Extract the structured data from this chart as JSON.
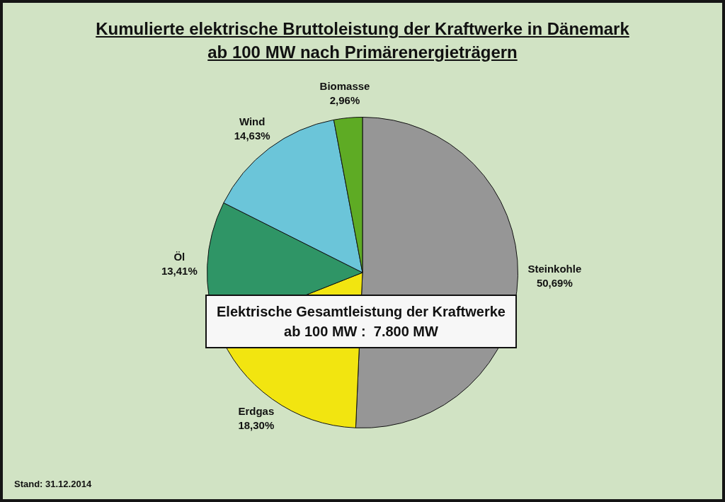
{
  "chart_data": {
    "type": "pie",
    "title": "Kumulierte elektrische Bruttoleistung der Kraftwerke in Dänemark ab 100 MW nach Primärenergieträgern",
    "categories": [
      "Steinkohle",
      "Erdgas",
      "Öl",
      "Wind",
      "Biomasse"
    ],
    "values": [
      50.69,
      18.3,
      13.41,
      14.63,
      2.96
    ],
    "colors": [
      "#969696",
      "#f2e510",
      "#2f9566",
      "#6bc5d9",
      "#5eab24"
    ],
    "value_labels": [
      "50,69%",
      "18,30%",
      "13,41%",
      "14,63%",
      "2,96%"
    ],
    "annotations": [
      "Elektrische Gesamtleistung der Kraftwerke ab 100 MW :  7.800 MW",
      "Stand: 31.12.2014"
    ],
    "legend": false
  }
}
